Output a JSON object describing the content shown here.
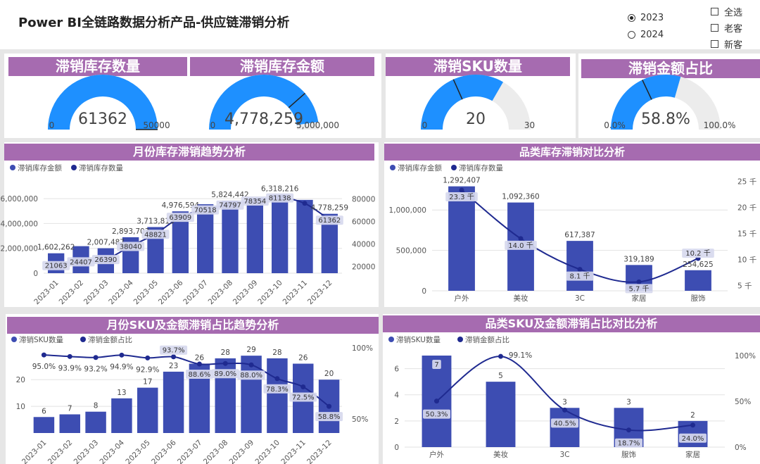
{
  "header": {
    "title": "Power BI全链路数据分析产品-供应链滞销分析",
    "year_options": [
      {
        "label": "2023",
        "selected": true
      },
      {
        "label": "2024",
        "selected": false
      }
    ],
    "customer_options": [
      "全选",
      "老客",
      "新客"
    ]
  },
  "kpis": [
    {
      "title": "滞销库存数量",
      "value_text": "61362",
      "min_text": "0",
      "max_text": "50000",
      "value": 61362,
      "target": 61362,
      "max": 50000
    },
    {
      "title": "滞销库存金额",
      "value_text": "4,778,259",
      "min_text": "0",
      "max_text": "5,000,000",
      "value": 4778259,
      "target": 3850000,
      "max": 5000000
    },
    {
      "title": "滞销SKU数量",
      "value_text": "20",
      "min_text": "0",
      "max_text": "30",
      "value": 20,
      "target": 11,
      "max": 30
    },
    {
      "title": "滞销金额占比",
      "value_text": "58.8%",
      "min_text": "0.0%",
      "max_text": "100.0%",
      "value": 58.8,
      "target": 36,
      "max": 100
    }
  ],
  "colors": {
    "bar": "#3d4db2",
    "line": "#1f2a90",
    "header": "#a66bb0",
    "gauge": "#1e90ff",
    "track": "#ececec"
  },
  "chart_data": [
    {
      "type": "bar",
      "title": "月份库存滞销趋势分析",
      "legend": [
        "滞销库存金额",
        "滞销库存数量"
      ],
      "categories": [
        "2023-01",
        "2023-02",
        "2023-03",
        "2023-04",
        "2023-05",
        "2023-06",
        "2023-07",
        "2023-08",
        "2023-09",
        "2023-10",
        "2023-11",
        "2023-12"
      ],
      "series": [
        {
          "name": "滞销库存金额",
          "kind": "bar",
          "values": [
            1602262,
            2175000,
            2007487,
            2893703,
            3713813,
            4976594,
            5550000,
            5824442,
            6050000,
            6318216,
            5900000,
            4778259
          ],
          "labels": [
            "1,602,262",
            "",
            "2,007,487",
            "2,893,703",
            "3,713,813",
            "4,976,594",
            "",
            "5,824,442",
            "",
            "6,318,216",
            "",
            "4,778,259"
          ]
        },
        {
          "name": "滞销库存数量",
          "kind": "line",
          "values": [
            21063,
            24407,
            26390,
            38040,
            48821,
            63909,
            70518,
            74797,
            78354,
            81138,
            76000,
            61362
          ],
          "labels": [
            "21063",
            "24407",
            "26390",
            "38040",
            "48821",
            "63909",
            "70518",
            "74797",
            "78354",
            "81138",
            "",
            "61362"
          ]
        }
      ],
      "y_left": {
        "ticks": [
          "0",
          "2,000,000",
          "4,000,000",
          "6,000,000"
        ],
        "range": [
          0,
          6800000
        ]
      },
      "y_right": {
        "ticks": [
          "20000",
          "40000",
          "60000",
          "80000"
        ],
        "range": [
          14000,
          89000
        ]
      }
    },
    {
      "type": "bar",
      "title": "品类库存滞销对比分析",
      "legend": [
        "滞销库存金额",
        "滞销库存数量"
      ],
      "categories": [
        "户外",
        "美妆",
        "3C",
        "家居",
        "服饰"
      ],
      "series": [
        {
          "name": "滞销库存金额",
          "kind": "bar",
          "values": [
            1292407,
            1092360,
            617387,
            319189,
            254625
          ],
          "labels": [
            "1,292,407",
            "1,092,360",
            "617,387",
            "319,189",
            "254,625"
          ]
        },
        {
          "name": "滞销库存数量",
          "kind": "line",
          "values": [
            23300,
            14000,
            8100,
            5700,
            10200
          ],
          "labels": [
            "23.3 千",
            "14.0 千",
            "8.1 千",
            "5.7 千",
            "10.2 千"
          ]
        }
      ],
      "y_left": {
        "ticks": [
          "0",
          "500,000",
          "1,000,000"
        ],
        "range": [
          0,
          1420000
        ]
      },
      "y_right": {
        "ticks": [
          "5 千",
          "10 千",
          "15 千",
          "20 千",
          "25 千"
        ],
        "range": [
          4000,
          26000
        ]
      }
    },
    {
      "type": "bar",
      "title": "月份SKU及金额滞销占比趋势分析",
      "legend": [
        "滞销SKU数量",
        "滞销金额占比"
      ],
      "categories": [
        "2023-01",
        "2023-02",
        "2023-03",
        "2023-04",
        "2023-05",
        "2023-06",
        "2023-07",
        "2023-08",
        "2023-09",
        "2023-10",
        "2023-11",
        "2023-12"
      ],
      "series": [
        {
          "name": "滞销SKU数量",
          "kind": "bar",
          "values": [
            6,
            7,
            8,
            13,
            17,
            23,
            26,
            28,
            29,
            28,
            26,
            20
          ],
          "labels": [
            "6",
            "7",
            "8",
            "13",
            "17",
            "23",
            "26",
            "28",
            "29",
            "28",
            "26",
            "20"
          ]
        },
        {
          "name": "滞销金额占比",
          "kind": "line",
          "values": [
            95.0,
            93.9,
            93.2,
            94.9,
            92.9,
            93.7,
            88.6,
            89.0,
            88.0,
            78.3,
            72.5,
            58.8
          ],
          "labels": [
            "95.0%",
            "93.9%",
            "93.2%",
            "94.9%",
            "92.9%",
            "93.7%",
            "88.6%",
            "89.0%",
            "88.0%",
            "78.3%",
            "72.5%",
            "58.8%"
          ]
        }
      ],
      "y_left": {
        "ticks": [
          "20",
          "10"
        ],
        "range": [
          0,
          33
        ]
      },
      "y_right": {
        "ticks": [
          "50%",
          "100%"
        ],
        "range": [
          40,
          102
        ]
      }
    },
    {
      "type": "bar",
      "title": "品类SKU及金额滞销占比对比分析",
      "legend": [
        "滞销SKU数量",
        "滞销金额占比"
      ],
      "categories": [
        "户外",
        "美妆",
        "3C",
        "服饰",
        "家居"
      ],
      "series": [
        {
          "name": "滞销SKU数量",
          "kind": "bar",
          "values": [
            7,
            5,
            3,
            3,
            2
          ],
          "labels": [
            "7",
            "5",
            "3",
            "3",
            "2"
          ]
        },
        {
          "name": "滞销金额占比",
          "kind": "line",
          "values": [
            50.3,
            99.1,
            40.5,
            18.7,
            24.0
          ],
          "labels": [
            "50.3%",
            "99.1%",
            "40.5%",
            "18.7%",
            "24.0%"
          ]
        }
      ],
      "y_left": {
        "ticks": [
          "0",
          "2",
          "4",
          "6"
        ],
        "range": [
          0,
          7
        ]
      },
      "y_right": {
        "ticks": [
          "0%",
          "50%",
          "100%"
        ],
        "range": [
          0,
          100
        ]
      }
    }
  ]
}
